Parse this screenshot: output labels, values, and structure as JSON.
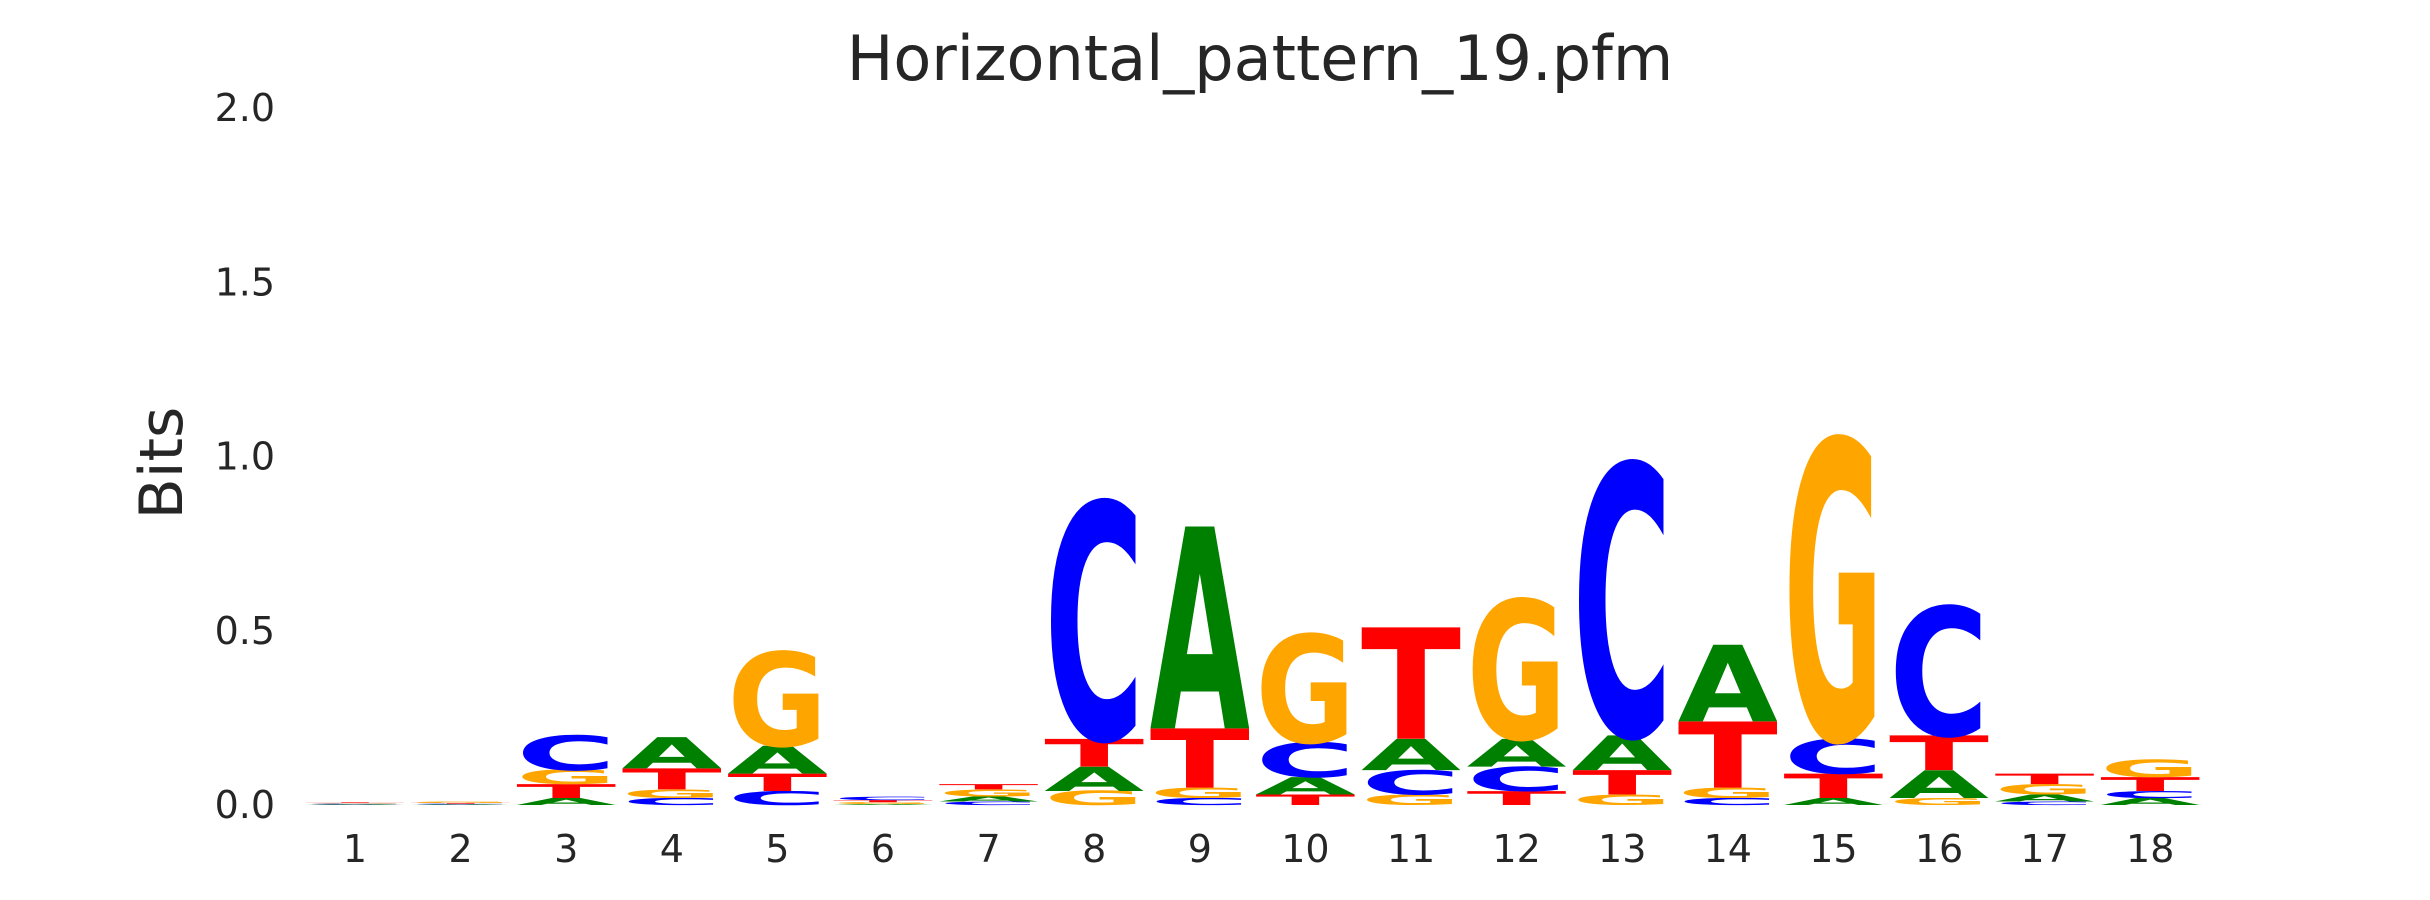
{
  "chart_data": {
    "type": "sequence-logo",
    "title": "Horizontal_pattern_19.pfm",
    "xlabel": "",
    "ylabel": "Bits",
    "ylim": [
      0,
      2
    ],
    "yticks": [
      "0.0",
      "0.5",
      "1.0",
      "1.5",
      "2.0"
    ],
    "yticks_values": [
      0,
      0.5,
      1.0,
      1.5,
      2.0
    ],
    "grid": false,
    "colors": {
      "A": "#008000",
      "C": "#0000ff",
      "G": "#ffa500",
      "T": "#ff0000"
    },
    "positions": [
      {
        "label": "1",
        "letters": [
          {
            "base": "A",
            "height": 0.002
          },
          {
            "base": "C",
            "height": 0.002
          },
          {
            "base": "G",
            "height": 0.002
          },
          {
            "base": "T",
            "height": 0.002
          }
        ]
      },
      {
        "label": "2",
        "letters": [
          {
            "base": "A",
            "height": 0.002
          },
          {
            "base": "C",
            "height": 0.002
          },
          {
            "base": "T",
            "height": 0.002
          },
          {
            "base": "G",
            "height": 0.003
          }
        ]
      },
      {
        "label": "3",
        "letters": [
          {
            "base": "A",
            "height": 0.02
          },
          {
            "base": "T",
            "height": 0.04
          },
          {
            "base": "G",
            "height": 0.04
          },
          {
            "base": "C",
            "height": 0.1
          }
        ]
      },
      {
        "label": "4",
        "letters": [
          {
            "base": "C",
            "height": 0.02
          },
          {
            "base": "G",
            "height": 0.025
          },
          {
            "base": "T",
            "height": 0.06
          },
          {
            "base": "A",
            "height": 0.09
          }
        ]
      },
      {
        "label": "5",
        "letters": [
          {
            "base": "C",
            "height": 0.04
          },
          {
            "base": "T",
            "height": 0.05
          },
          {
            "base": "A",
            "height": 0.08
          },
          {
            "base": "G",
            "height": 0.27
          }
        ]
      },
      {
        "label": "6",
        "letters": [
          {
            "base": "A",
            "height": 0.003
          },
          {
            "base": "G",
            "height": 0.005
          },
          {
            "base": "T",
            "height": 0.006
          },
          {
            "base": "C",
            "height": 0.01
          }
        ]
      },
      {
        "label": "7",
        "letters": [
          {
            "base": "C",
            "height": 0.01
          },
          {
            "base": "A",
            "height": 0.015
          },
          {
            "base": "G",
            "height": 0.02
          },
          {
            "base": "T",
            "height": 0.015
          }
        ]
      },
      {
        "label": "8",
        "letters": [
          {
            "base": "G",
            "height": 0.04
          },
          {
            "base": "A",
            "height": 0.07
          },
          {
            "base": "T",
            "height": 0.08
          },
          {
            "base": "C",
            "height": 0.68
          }
        ]
      },
      {
        "label": "9",
        "letters": [
          {
            "base": "C",
            "height": 0.02
          },
          {
            "base": "G",
            "height": 0.03
          },
          {
            "base": "T",
            "height": 0.17
          },
          {
            "base": "A",
            "height": 0.58
          }
        ]
      },
      {
        "label": "10",
        "letters": [
          {
            "base": "T",
            "height": 0.03
          },
          {
            "base": "A",
            "height": 0.05
          },
          {
            "base": "C",
            "height": 0.1
          },
          {
            "base": "G",
            "height": 0.31
          }
        ]
      },
      {
        "label": "11",
        "letters": [
          {
            "base": "G",
            "height": 0.03
          },
          {
            "base": "C",
            "height": 0.07
          },
          {
            "base": "A",
            "height": 0.09
          },
          {
            "base": "T",
            "height": 0.32
          }
        ]
      },
      {
        "label": "12",
        "letters": [
          {
            "base": "T",
            "height": 0.04
          },
          {
            "base": "C",
            "height": 0.07
          },
          {
            "base": "A",
            "height": 0.08
          },
          {
            "base": "G",
            "height": 0.4
          }
        ]
      },
      {
        "label": "13",
        "letters": [
          {
            "base": "G",
            "height": 0.03
          },
          {
            "base": "T",
            "height": 0.07
          },
          {
            "base": "A",
            "height": 0.1
          },
          {
            "base": "C",
            "height": 0.78
          }
        ]
      },
      {
        "label": "14",
        "letters": [
          {
            "base": "C",
            "height": 0.02
          },
          {
            "base": "G",
            "height": 0.03
          },
          {
            "base": "T",
            "height": 0.19
          },
          {
            "base": "A",
            "height": 0.22
          }
        ]
      },
      {
        "label": "15",
        "letters": [
          {
            "base": "A",
            "height": 0.02
          },
          {
            "base": "T",
            "height": 0.07
          },
          {
            "base": "C",
            "height": 0.1
          },
          {
            "base": "G",
            "height": 0.86
          }
        ]
      },
      {
        "label": "16",
        "letters": [
          {
            "base": "G",
            "height": 0.02
          },
          {
            "base": "A",
            "height": 0.08
          },
          {
            "base": "T",
            "height": 0.1
          },
          {
            "base": "C",
            "height": 0.37
          }
        ]
      },
      {
        "label": "17",
        "letters": [
          {
            "base": "C",
            "height": 0.01
          },
          {
            "base": "A",
            "height": 0.02
          },
          {
            "base": "G",
            "height": 0.03
          },
          {
            "base": "T",
            "height": 0.03
          }
        ]
      },
      {
        "label": "18",
        "letters": [
          {
            "base": "A",
            "height": 0.02
          },
          {
            "base": "C",
            "height": 0.02
          },
          {
            "base": "T",
            "height": 0.04
          },
          {
            "base": "G",
            "height": 0.05
          }
        ]
      }
    ]
  }
}
